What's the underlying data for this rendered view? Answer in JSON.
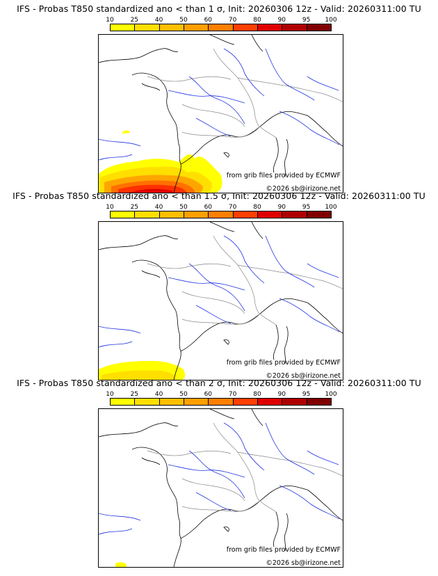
{
  "colorbar": {
    "ticks": [
      "10",
      "25",
      "40",
      "50",
      "60",
      "70",
      "80",
      "90",
      "95",
      "100"
    ],
    "colors": [
      "#ffff00",
      "#ffdf00",
      "#ffbf00",
      "#ff9f00",
      "#ff7f00",
      "#ff3f00",
      "#e00000",
      "#b00000",
      "#800000"
    ]
  },
  "panels": [
    {
      "title": "IFS - Probas T850  standardized ano < than 1 σ, Init: 20260306 12z - Valid: 20260311:00 TU",
      "source_note": "from grib files provided by ECMWF",
      "copyright": "©2026 sb@irizone.net"
    },
    {
      "title": "IFS - Probas T850  standardized ano < than 1.5 σ, Init: 20260306 12z - Valid: 20260311:00 TU",
      "source_note": "from grib files provided by ECMWF",
      "copyright": "©2026 sb@irizone.net"
    },
    {
      "title": "IFS - Probas T850  standardized ano < than 2 σ, Init: 20260306 12z - Valid: 20260311:00 TU",
      "source_note": "from grib files provided by ECMWF",
      "copyright": "©2026 sb@irizone.net"
    }
  ]
}
